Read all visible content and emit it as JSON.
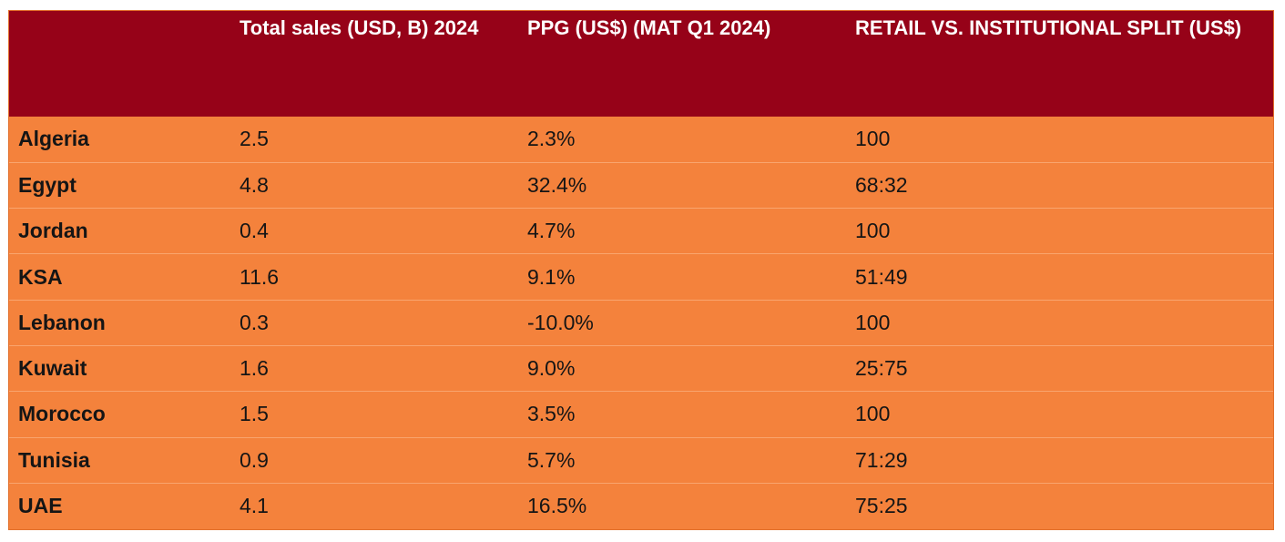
{
  "table": {
    "headers": [
      "",
      "Total sales (USD, B) 2024",
      "PPG (US$) (MAT Q1 2024)",
      "RETAIL VS. INSTITUTIONAL SPLIT (US$)"
    ],
    "rows": [
      {
        "country": "Algeria",
        "total_sales": "2.5",
        "ppg": "2.3%",
        "split": "100"
      },
      {
        "country": "Egypt",
        "total_sales": "4.8",
        "ppg": "32.4%",
        "split": "68:32"
      },
      {
        "country": "Jordan",
        "total_sales": "0.4",
        "ppg": "4.7%",
        "split": "100"
      },
      {
        "country": "KSA",
        "total_sales": "11.6",
        "ppg": "9.1%",
        "split": "51:49"
      },
      {
        "country": "Lebanon",
        "total_sales": "0.3",
        "ppg": "-10.0%",
        "split": "100"
      },
      {
        "country": "Kuwait",
        "total_sales": "1.6",
        "ppg": "9.0%",
        "split": "25:75"
      },
      {
        "country": "Morocco",
        "total_sales": "1.5",
        "ppg": "3.5%",
        "split": "100"
      },
      {
        "country": "Tunisia",
        "total_sales": "0.9",
        "ppg": "5.7%",
        "split": "71:29"
      },
      {
        "country": "UAE",
        "total_sales": "4.1",
        "ppg": "16.5%",
        "split": "75:25"
      }
    ]
  },
  "colors": {
    "header_bg": "#960218",
    "body_bg": "#F4823C",
    "header_text": "#FFFFFF"
  }
}
